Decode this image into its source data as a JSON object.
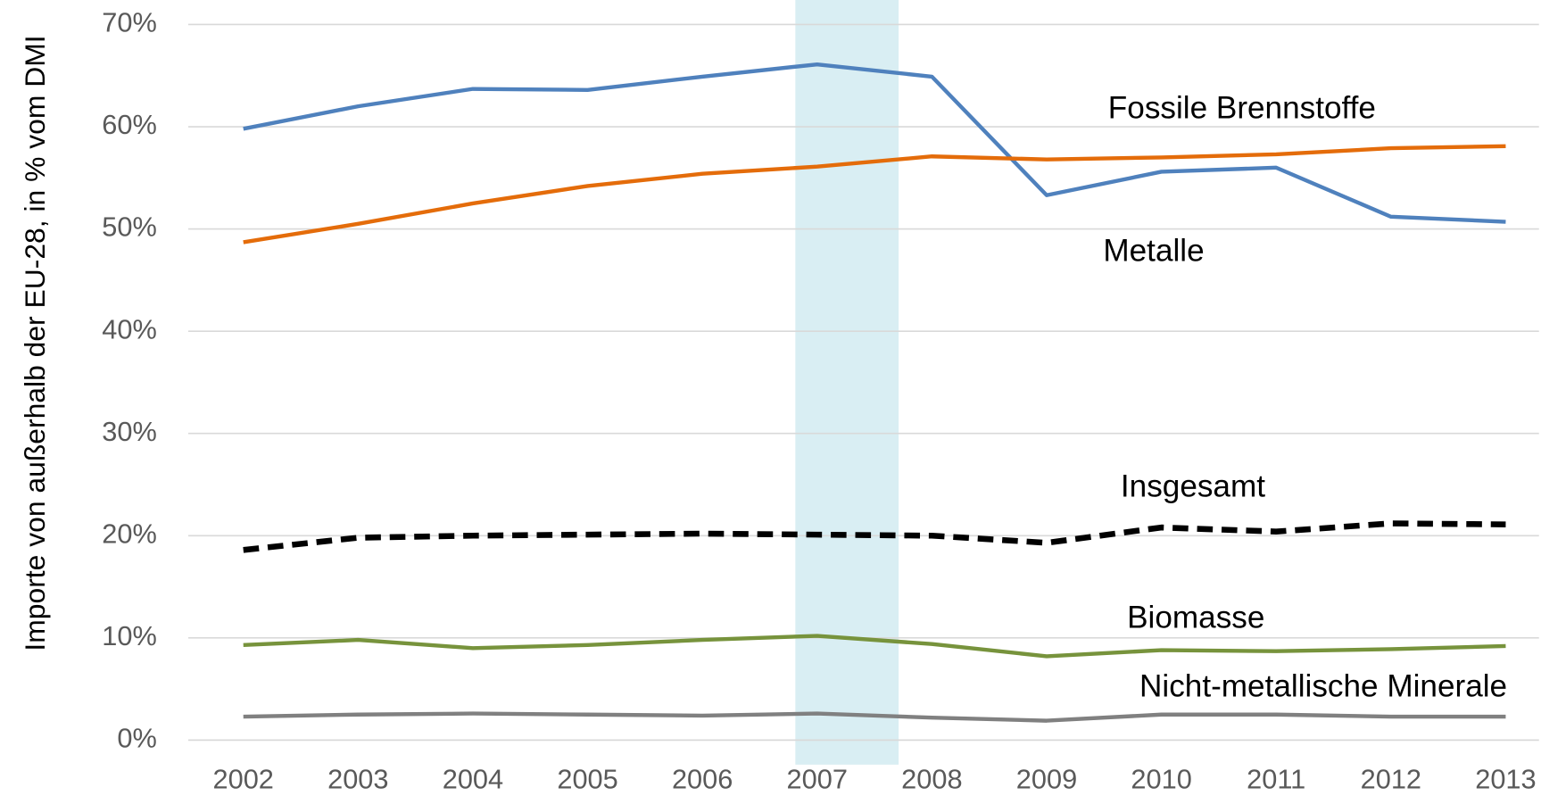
{
  "chart_data": {
    "type": "line",
    "y_label": "Importe von außerhalb der EU-28, in % vom DMI",
    "x": [
      2002,
      2003,
      2004,
      2005,
      2006,
      2007,
      2008,
      2009,
      2010,
      2011,
      2012,
      2013
    ],
    "xlim": [
      2001.52,
      2013.29
    ],
    "xticks": [
      2002,
      2003,
      2004,
      2005,
      2006,
      2007,
      2008,
      2009,
      2010,
      2011,
      2012,
      2013
    ],
    "ylim": [
      0,
      70
    ],
    "yticks": [
      {
        "value": 0,
        "label": "0%"
      },
      {
        "value": 10,
        "label": "10%"
      },
      {
        "value": 20,
        "label": "20%"
      },
      {
        "value": 30,
        "label": "30%"
      },
      {
        "value": 40,
        "label": "40%"
      },
      {
        "value": 50,
        "label": "50%"
      },
      {
        "value": 60,
        "label": "60%"
      },
      {
        "value": 70,
        "label": "70%"
      }
    ],
    "grid": true,
    "highlight": {
      "range": [
        2006.81,
        2007.71
      ],
      "color": "#d9eef3"
    },
    "series": [
      {
        "name": "Metalle",
        "color": "#4f81bd",
        "style": "solid",
        "values": [
          59.8,
          62.0,
          63.7,
          63.6,
          64.9,
          66.1,
          64.9,
          53.3,
          55.6,
          56.0,
          51.2,
          50.7
        ]
      },
      {
        "name": "Fossile Brennstoffe",
        "color": "#e46c0a",
        "style": "solid",
        "values": [
          48.7,
          50.5,
          52.5,
          54.2,
          55.4,
          56.1,
          57.1,
          56.8,
          57.0,
          57.3,
          57.9,
          58.1
        ]
      },
      {
        "name": "Insgesamt",
        "color": "#000000",
        "style": "dashed",
        "values": [
          18.6,
          19.8,
          20.0,
          20.1,
          20.2,
          20.1,
          20.0,
          19.3,
          20.8,
          20.4,
          21.2,
          21.1
        ]
      },
      {
        "name": "Biomasse",
        "color": "#77933c",
        "style": "solid",
        "values": [
          9.3,
          9.8,
          9.0,
          9.3,
          9.8,
          10.2,
          9.4,
          8.2,
          8.8,
          8.7,
          8.9,
          9.2
        ]
      },
      {
        "name": "Nicht-metallische Minerale",
        "color": "#808080",
        "style": "solid",
        "values": [
          2.3,
          2.5,
          2.6,
          2.5,
          2.4,
          2.6,
          2.2,
          1.9,
          2.5,
          2.5,
          2.3,
          2.3
        ]
      }
    ]
  }
}
